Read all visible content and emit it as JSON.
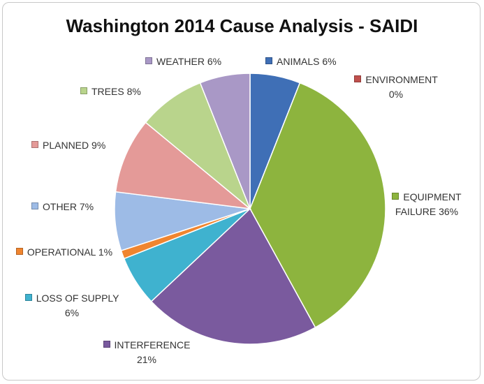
{
  "chart_data": {
    "type": "pie",
    "title": "Washington 2014 Cause Analysis - SAIDI",
    "categories": [
      "ANIMALS",
      "ENVIRONMENT",
      "EQUIPMENT FAILURE",
      "INTERFERENCE",
      "LOSS OF SUPPLY",
      "OPERATIONAL",
      "OTHER",
      "PLANNED",
      "TREES",
      "WEATHER"
    ],
    "values": [
      6,
      0,
      36,
      21,
      6,
      1,
      7,
      9,
      8,
      6
    ],
    "value_labels": [
      "6%",
      "0%",
      "36%",
      "21%",
      "6%",
      "1%",
      "7%",
      "9%",
      "8%",
      "6%"
    ],
    "colors": [
      "#3f6fb6",
      "#c0504d",
      "#8db43e",
      "#7a5a9e",
      "#3fb2cf",
      "#f0852f",
      "#9dbbe6",
      "#e49a98",
      "#b9d48c",
      "#a998c6"
    ]
  }
}
